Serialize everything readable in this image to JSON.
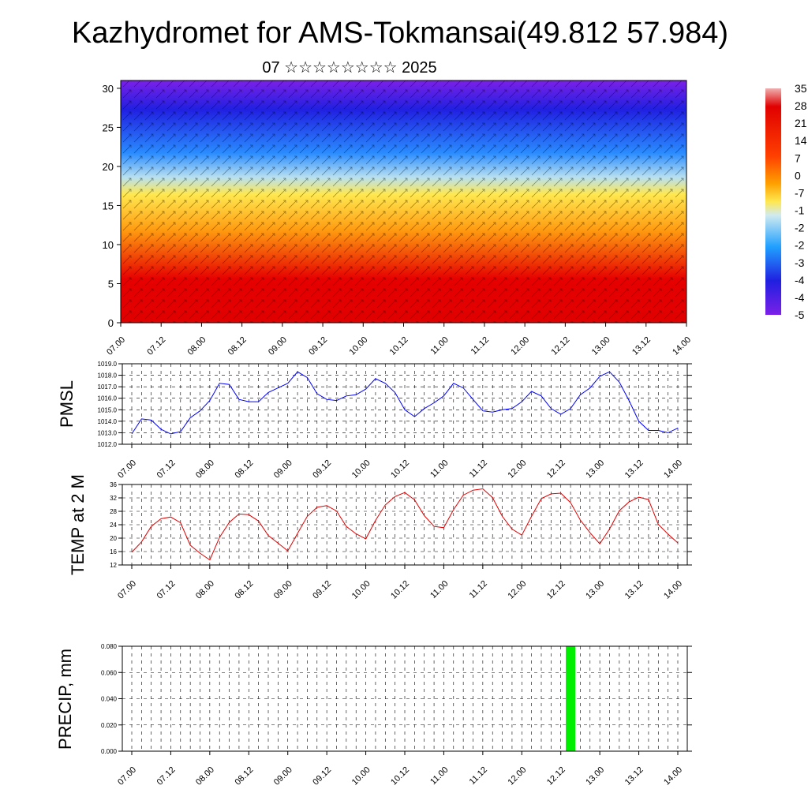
{
  "title": "Kazhydromet for AMS-Tokmansai(49.812 57.984)",
  "subtitle": "07 ☆☆☆☆☆☆☆☆ 2025",
  "time_labels": [
    "07.00",
    "07.12",
    "08.00",
    "08.12",
    "09.00",
    "09.12",
    "10.00",
    "10.12",
    "11.00",
    "11.12",
    "12.00",
    "12.12",
    "13.00",
    "13.12",
    "14.00"
  ],
  "chart_data": [
    {
      "type": "heatmap",
      "yticks": [
        "0",
        "5",
        "10",
        "15",
        "20",
        "25",
        "30"
      ],
      "ylim": [
        0,
        31
      ],
      "colorbar_labels": [
        "35",
        "28",
        "21",
        "14",
        "7",
        "0",
        "-7",
        "-1",
        "-2",
        "-2",
        "-3",
        "-4",
        "-4",
        "-5"
      ],
      "colors": {
        "hot": "#e60000",
        "warm": "#ff9a10",
        "mild": "#ffe850",
        "cool": "#b8e0f0",
        "cold": "#2a8cff",
        "freezing": "#2020e0",
        "top": "#7b20e8"
      },
      "note_overlay": "wind vectors"
    },
    {
      "type": "line",
      "ylabel": "PMSL",
      "ylim": [
        1012.0,
        1019.0
      ],
      "yticks": [
        "1012.0",
        "1013.0",
        "1014.0",
        "1015.0",
        "1016.0",
        "1017.0",
        "1018.0",
        "1019.0"
      ],
      "color": "#0000ff",
      "values": [
        1012.9,
        1014.2,
        1014.1,
        1013.3,
        1012.9,
        1013.1,
        1014.3,
        1014.9,
        1015.8,
        1017.3,
        1017.2,
        1015.9,
        1015.7,
        1015.7,
        1016.5,
        1016.9,
        1017.3,
        1018.3,
        1017.8,
        1016.4,
        1015.9,
        1015.8,
        1016.2,
        1016.3,
        1016.8,
        1017.7,
        1017.3,
        1016.5,
        1015.0,
        1014.4,
        1015.1,
        1015.6,
        1016.2,
        1017.3,
        1016.9,
        1015.9,
        1014.9,
        1014.8,
        1015.0,
        1015.1,
        1015.7,
        1016.6,
        1016.2,
        1015.1,
        1014.6,
        1015.1,
        1016.3,
        1016.9,
        1017.9,
        1018.3,
        1017.4,
        1015.8,
        1014.0,
        1013.2,
        1013.2,
        1013.0,
        1013.4
      ]
    },
    {
      "type": "line",
      "ylabel": "TEMP at 2 M",
      "ylim": [
        12,
        36
      ],
      "yticks": [
        "12",
        "16",
        "20",
        "24",
        "28",
        "32",
        "36"
      ],
      "color": "#e00000",
      "values": [
        15.8,
        18.9,
        23.5,
        25.8,
        26.3,
        24.6,
        17.9,
        15.5,
        13.5,
        20.2,
        24.7,
        27.2,
        27.0,
        25.1,
        20.8,
        18.5,
        16.2,
        21.4,
        26.5,
        29.2,
        29.7,
        28.1,
        23.5,
        21.3,
        19.8,
        25.3,
        29.9,
        32.4,
        33.6,
        31.4,
        26.7,
        23.5,
        23.1,
        28.5,
        32.8,
        34.3,
        34.7,
        32.1,
        26.5,
        22.7,
        20.9,
        26.5,
        31.8,
        33.2,
        33.4,
        30.6,
        25.4,
        21.6,
        18.3,
        22.7,
        28.2,
        30.8,
        32.2,
        31.5,
        24.1,
        21.2,
        18.6
      ]
    },
    {
      "type": "bar",
      "ylabel": "PRECIP, mm",
      "ylim": [
        0,
        0.08
      ],
      "yticks": [
        "0.000",
        "0.020",
        "0.040",
        "0.060",
        "0.080"
      ],
      "color": "#00ee00",
      "bars": [
        {
          "t": 45,
          "value": 0.08
        }
      ]
    }
  ]
}
